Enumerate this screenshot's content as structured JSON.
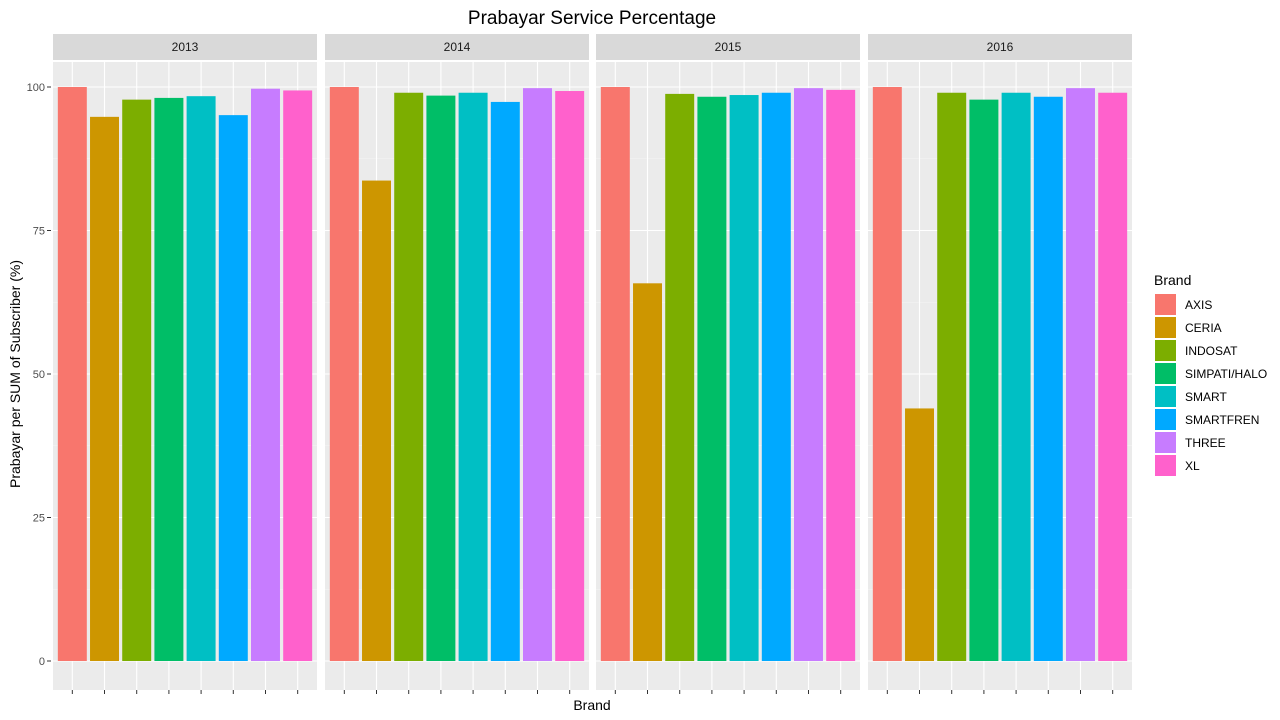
{
  "chart_data": {
    "type": "bar",
    "title": "Prabayar Service Percentage",
    "xlabel": "Brand",
    "ylabel": "Prabayar per SUM of Subscriber (%)",
    "ylim": [
      0,
      100
    ],
    "yticks": [
      0,
      25,
      50,
      75,
      100
    ],
    "grid": true,
    "legend": {
      "title": "Brand",
      "position": "right"
    },
    "categories": [
      "AXIS",
      "CERIA",
      "INDOSAT",
      "SIMPATI/HALO",
      "SMART",
      "SMARTFREN",
      "THREE",
      "XL"
    ],
    "colors": [
      "#F8766D",
      "#CD9600",
      "#7CAE00",
      "#00BE67",
      "#00BFC4",
      "#00A9FF",
      "#C77CFF",
      "#FF61CC"
    ],
    "facets": [
      {
        "label": "2013",
        "values": [
          100,
          94.8,
          97.8,
          98.1,
          98.4,
          95.1,
          99.7,
          99.4
        ]
      },
      {
        "label": "2014",
        "values": [
          100,
          83.7,
          99.0,
          98.5,
          99.0,
          97.4,
          99.8,
          99.3
        ]
      },
      {
        "label": "2015",
        "values": [
          100,
          65.8,
          98.8,
          98.3,
          98.6,
          99.0,
          99.8,
          99.5
        ]
      },
      {
        "label": "2016",
        "values": [
          100,
          44.0,
          99.0,
          97.8,
          99.0,
          98.3,
          99.8,
          99.0
        ]
      }
    ]
  }
}
